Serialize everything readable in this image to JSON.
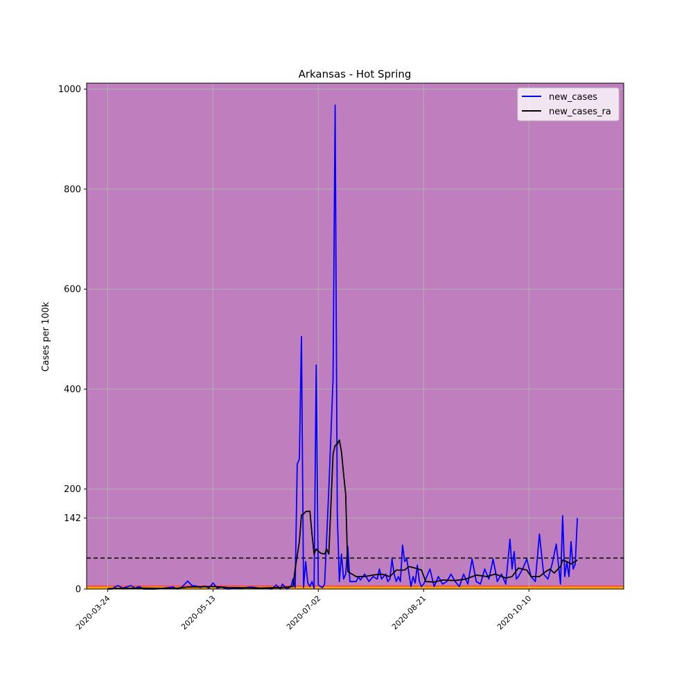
{
  "chart_data": {
    "type": "line",
    "title": "Arkansas - Hot Spring",
    "xlabel": "",
    "ylabel": "Cases per 100k",
    "x_ticks": [
      "2020-03-24",
      "2020-05-13",
      "2020-07-02",
      "2020-08-21",
      "2020-10-10"
    ],
    "y_ticks": [
      0,
      142,
      200,
      400,
      600,
      800,
      1000
    ],
    "xlim": [
      "2020-03-14",
      "2020-11-24"
    ],
    "ylim": [
      0,
      1012
    ],
    "grid": true,
    "legend_position": "top-right",
    "background_color": "#bf7fbf",
    "threshold_line": {
      "value": 62,
      "style": "dashed",
      "color": "#000000"
    },
    "bands": [
      {
        "from": 0,
        "to": 5,
        "color": "#ffa500"
      },
      {
        "from": 5,
        "to": 7,
        "color": "#ff3b3b"
      }
    ],
    "series": [
      {
        "name": "new_cases",
        "color": "#0000ff",
        "points": [
          [
            "2020-03-24",
            0
          ],
          [
            "2020-03-26",
            0
          ],
          [
            "2020-03-27",
            3
          ],
          [
            "2020-03-29",
            7
          ],
          [
            "2020-03-31",
            2
          ],
          [
            "2020-04-02",
            4
          ],
          [
            "2020-04-04",
            7
          ],
          [
            "2020-04-06",
            2
          ],
          [
            "2020-04-08",
            5
          ],
          [
            "2020-04-10",
            0
          ],
          [
            "2020-04-16",
            0
          ],
          [
            "2020-04-24",
            4
          ],
          [
            "2020-04-26",
            0
          ],
          [
            "2020-04-28",
            3
          ],
          [
            "2020-05-01",
            16
          ],
          [
            "2020-05-03",
            7
          ],
          [
            "2020-05-05",
            6
          ],
          [
            "2020-05-07",
            3
          ],
          [
            "2020-05-09",
            6
          ],
          [
            "2020-05-11",
            2
          ],
          [
            "2020-05-13",
            12
          ],
          [
            "2020-05-15",
            2
          ],
          [
            "2020-05-17",
            4
          ],
          [
            "2020-05-20",
            0
          ],
          [
            "2020-05-27",
            2
          ],
          [
            "2020-05-31",
            4
          ],
          [
            "2020-06-04",
            2
          ],
          [
            "2020-06-10",
            0
          ],
          [
            "2020-06-12",
            8
          ],
          [
            "2020-06-14",
            0
          ],
          [
            "2020-06-15",
            10
          ],
          [
            "2020-06-17",
            0
          ],
          [
            "2020-06-19",
            5
          ],
          [
            "2020-06-20",
            20
          ],
          [
            "2020-06-21",
            3
          ],
          [
            "2020-06-22",
            250
          ],
          [
            "2020-06-23",
            260
          ],
          [
            "2020-06-24",
            505
          ],
          [
            "2020-06-25",
            3
          ],
          [
            "2020-06-26",
            55
          ],
          [
            "2020-06-27",
            12
          ],
          [
            "2020-06-28",
            5
          ],
          [
            "2020-06-29",
            15
          ],
          [
            "2020-06-30",
            2
          ],
          [
            "2020-07-01",
            448
          ],
          [
            "2020-07-02",
            8
          ],
          [
            "2020-07-03",
            5
          ],
          [
            "2020-07-04",
            3
          ],
          [
            "2020-07-05",
            10
          ],
          [
            "2020-07-07",
            200
          ],
          [
            "2020-07-09",
            420
          ],
          [
            "2020-07-10",
            968
          ],
          [
            "2020-07-11",
            150
          ],
          [
            "2020-07-12",
            15
          ],
          [
            "2020-07-13",
            70
          ],
          [
            "2020-07-14",
            20
          ],
          [
            "2020-07-15",
            30
          ],
          [
            "2020-07-16",
            85
          ],
          [
            "2020-07-17",
            15
          ],
          [
            "2020-07-20",
            15
          ],
          [
            "2020-07-21",
            25
          ],
          [
            "2020-07-22",
            18
          ],
          [
            "2020-07-24",
            30
          ],
          [
            "2020-07-26",
            15
          ],
          [
            "2020-07-28",
            25
          ],
          [
            "2020-07-30",
            20
          ],
          [
            "2020-07-31",
            40
          ],
          [
            "2020-08-01",
            20
          ],
          [
            "2020-08-03",
            30
          ],
          [
            "2020-08-04",
            15
          ],
          [
            "2020-08-05",
            20
          ],
          [
            "2020-08-06",
            60
          ],
          [
            "2020-08-07",
            30
          ],
          [
            "2020-08-08",
            15
          ],
          [
            "2020-08-09",
            25
          ],
          [
            "2020-08-10",
            15
          ],
          [
            "2020-08-11",
            88
          ],
          [
            "2020-08-12",
            55
          ],
          [
            "2020-08-13",
            60
          ],
          [
            "2020-08-15",
            5
          ],
          [
            "2020-08-16",
            25
          ],
          [
            "2020-08-17",
            12
          ],
          [
            "2020-08-18",
            48
          ],
          [
            "2020-08-19",
            15
          ],
          [
            "2020-08-20",
            5
          ],
          [
            "2020-08-21",
            10
          ],
          [
            "2020-08-24",
            40
          ],
          [
            "2020-08-26",
            5
          ],
          [
            "2020-08-28",
            25
          ],
          [
            "2020-08-30",
            10
          ],
          [
            "2020-09-01",
            15
          ],
          [
            "2020-09-03",
            30
          ],
          [
            "2020-09-05",
            15
          ],
          [
            "2020-09-07",
            5
          ],
          [
            "2020-09-09",
            30
          ],
          [
            "2020-09-11",
            10
          ],
          [
            "2020-09-13",
            60
          ],
          [
            "2020-09-15",
            15
          ],
          [
            "2020-09-17",
            10
          ],
          [
            "2020-09-19",
            40
          ],
          [
            "2020-09-21",
            20
          ],
          [
            "2020-09-23",
            60
          ],
          [
            "2020-09-25",
            15
          ],
          [
            "2020-09-27",
            30
          ],
          [
            "2020-09-29",
            10
          ],
          [
            "2020-10-01",
            100
          ],
          [
            "2020-10-02",
            40
          ],
          [
            "2020-10-03",
            75
          ],
          [
            "2020-10-04",
            20
          ],
          [
            "2020-10-05",
            25
          ],
          [
            "2020-10-07",
            40
          ],
          [
            "2020-10-09",
            60
          ],
          [
            "2020-10-11",
            25
          ],
          [
            "2020-10-13",
            15
          ],
          [
            "2020-10-15",
            110
          ],
          [
            "2020-10-17",
            30
          ],
          [
            "2020-10-19",
            20
          ],
          [
            "2020-10-21",
            50
          ],
          [
            "2020-10-23",
            90
          ],
          [
            "2020-10-25",
            10
          ],
          [
            "2020-10-26",
            147
          ],
          [
            "2020-10-27",
            25
          ],
          [
            "2020-10-28",
            55
          ],
          [
            "2020-10-29",
            25
          ],
          [
            "2020-10-30",
            95
          ],
          [
            "2020-10-31",
            40
          ],
          [
            "2020-11-01",
            50
          ],
          [
            "2020-11-02",
            142
          ]
        ]
      },
      {
        "name": "new_cases_ra",
        "color": "#000000",
        "points": [
          [
            "2020-03-24",
            1
          ],
          [
            "2020-04-10",
            2
          ],
          [
            "2020-04-24",
            1
          ],
          [
            "2020-05-01",
            4
          ],
          [
            "2020-05-13",
            5
          ],
          [
            "2020-05-20",
            3
          ],
          [
            "2020-06-04",
            2
          ],
          [
            "2020-06-15",
            3
          ],
          [
            "2020-06-20",
            5
          ],
          [
            "2020-06-21",
            40
          ],
          [
            "2020-06-23",
            95
          ],
          [
            "2020-06-24",
            148
          ],
          [
            "2020-06-25",
            150
          ],
          [
            "2020-06-26",
            155
          ],
          [
            "2020-06-28",
            156
          ],
          [
            "2020-06-29",
            110
          ],
          [
            "2020-06-30",
            70
          ],
          [
            "2020-07-01",
            80
          ],
          [
            "2020-07-02",
            76
          ],
          [
            "2020-07-03",
            72
          ],
          [
            "2020-07-05",
            70
          ],
          [
            "2020-07-06",
            80
          ],
          [
            "2020-07-07",
            70
          ],
          [
            "2020-07-09",
            270
          ],
          [
            "2020-07-10",
            287
          ],
          [
            "2020-07-11",
            290
          ],
          [
            "2020-07-12",
            298
          ],
          [
            "2020-07-13",
            275
          ],
          [
            "2020-07-14",
            230
          ],
          [
            "2020-07-15",
            190
          ],
          [
            "2020-07-16",
            35
          ],
          [
            "2020-07-18",
            30
          ],
          [
            "2020-07-20",
            25
          ],
          [
            "2020-07-24",
            25
          ],
          [
            "2020-07-28",
            28
          ],
          [
            "2020-08-01",
            30
          ],
          [
            "2020-08-05",
            25
          ],
          [
            "2020-08-08",
            38
          ],
          [
            "2020-08-12",
            38
          ],
          [
            "2020-08-14",
            45
          ],
          [
            "2020-08-17",
            42
          ],
          [
            "2020-08-20",
            38
          ],
          [
            "2020-08-22",
            15
          ],
          [
            "2020-08-26",
            14
          ],
          [
            "2020-08-30",
            18
          ],
          [
            "2020-09-05",
            17
          ],
          [
            "2020-09-10",
            20
          ],
          [
            "2020-09-15",
            28
          ],
          [
            "2020-09-20",
            25
          ],
          [
            "2020-09-24",
            30
          ],
          [
            "2020-09-29",
            22
          ],
          [
            "2020-10-02",
            25
          ],
          [
            "2020-10-05",
            42
          ],
          [
            "2020-10-09",
            38
          ],
          [
            "2020-10-11",
            25
          ],
          [
            "2020-10-15",
            25
          ],
          [
            "2020-10-18",
            35
          ],
          [
            "2020-10-20",
            40
          ],
          [
            "2020-10-22",
            32
          ],
          [
            "2020-10-25",
            45
          ],
          [
            "2020-10-26",
            58
          ],
          [
            "2020-10-28",
            55
          ],
          [
            "2020-10-30",
            50
          ],
          [
            "2020-11-02",
            58
          ]
        ]
      }
    ]
  }
}
